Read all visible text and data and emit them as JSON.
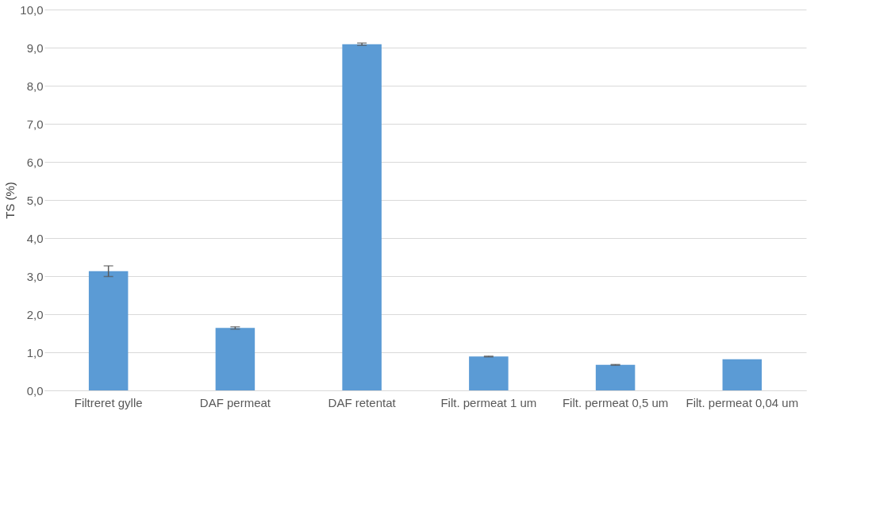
{
  "chart_data": {
    "type": "bar",
    "ylabel": "TS (%)",
    "categories": [
      "Filtreret gylle",
      "DAF permeat",
      "DAF retentat",
      "Filt. permeat 1 um",
      "Filt. permeat 0,5 um",
      "Filt. permeat 0,04 um"
    ],
    "values": [
      3.13,
      1.64,
      9.09,
      0.89,
      0.67,
      0.82
    ],
    "errors": [
      0.14,
      0.03,
      0.03,
      0.01,
      0.01,
      null
    ],
    "color": "#5b9bd5",
    "ylim": [
      0,
      10
    ],
    "yticks": [
      {
        "value": 0,
        "label": "0,0"
      },
      {
        "value": 1,
        "label": "1,0"
      },
      {
        "value": 2,
        "label": "2,0"
      },
      {
        "value": 3,
        "label": "3,0"
      },
      {
        "value": 4,
        "label": "4,0"
      },
      {
        "value": 5,
        "label": "5,0"
      },
      {
        "value": 6,
        "label": "6,0"
      },
      {
        "value": 7,
        "label": "7,0"
      },
      {
        "value": 8,
        "label": "8,0"
      },
      {
        "value": 9,
        "label": "9,0"
      },
      {
        "value": 10,
        "label": "10,0"
      }
    ],
    "grid": "y"
  }
}
